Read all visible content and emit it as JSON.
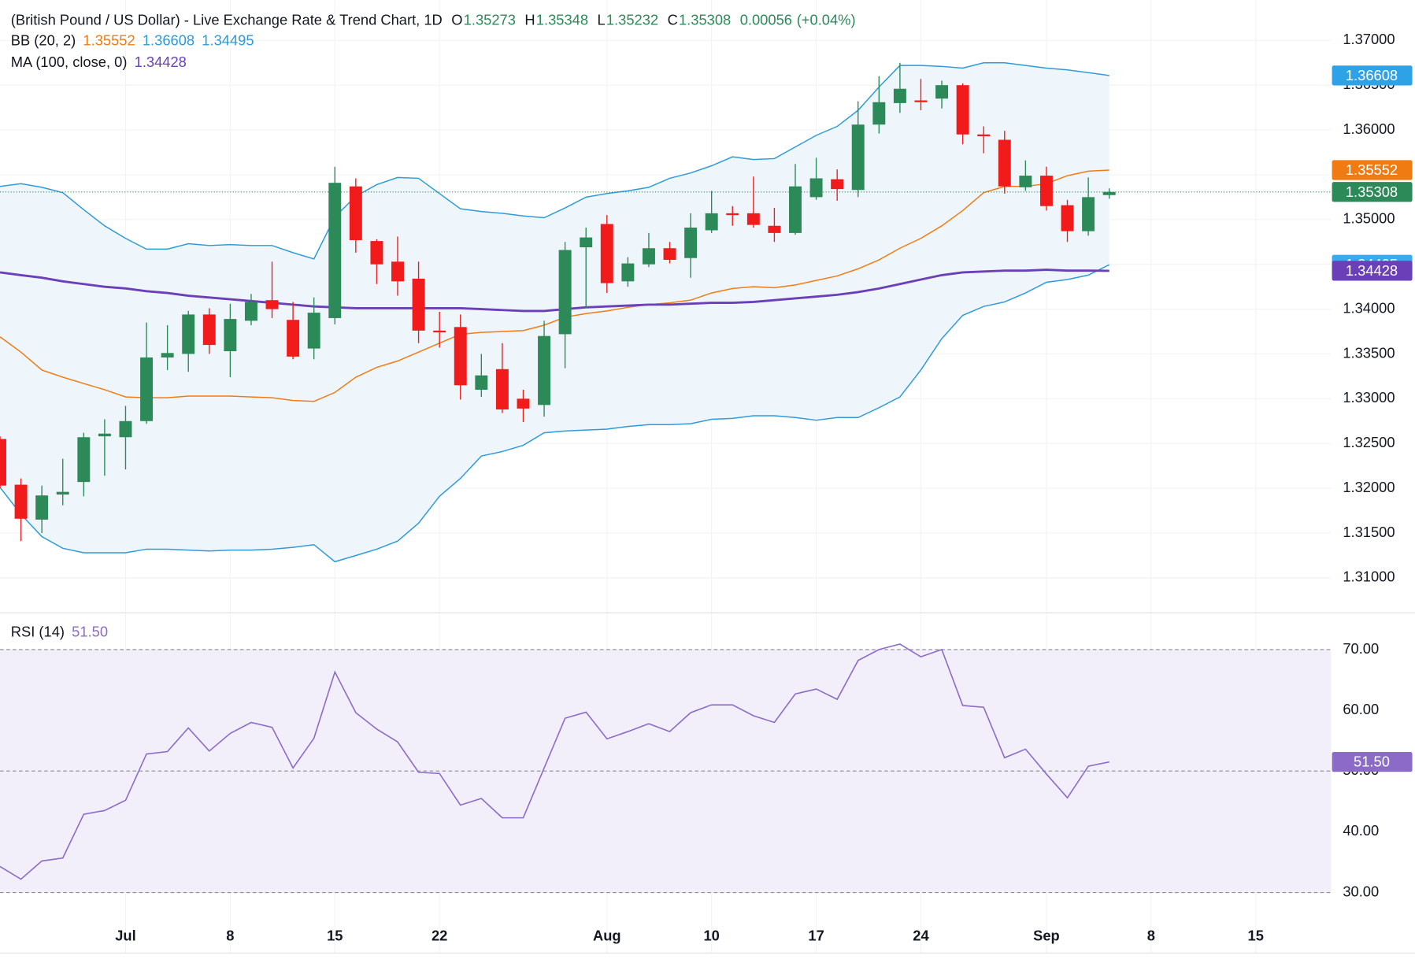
{
  "chart_data": [
    {
      "type": "candlestick",
      "title": "(British Pound / US Dollar) - Live Exchange Rate & Trend Chart, 1D",
      "ohlc_letters": [
        "O",
        "H",
        "L",
        "C"
      ],
      "change": 0.00056,
      "change_label": "(+0.04%)",
      "up_color": "#2b8a57",
      "down_color": "#f21b1b",
      "open": [
        1.3255,
        1.3204,
        1.3165,
        1.3193,
        1.3207,
        1.3258,
        1.3257,
        1.3275,
        1.3346,
        1.335,
        1.3394,
        1.3353,
        1.3387,
        1.341,
        1.3388,
        1.3356,
        1.339,
        1.3537,
        1.3476,
        1.3453,
        1.3434,
        1.3376,
        1.338,
        1.331,
        1.3333,
        1.33,
        1.3293,
        1.3372,
        1.3469,
        1.3495,
        1.3431,
        1.345,
        1.3468,
        1.3457,
        1.3488,
        1.3507,
        1.3507,
        1.3493,
        1.3485,
        1.3525,
        1.3545,
        1.3533,
        1.3606,
        1.363,
        1.3633,
        1.3635,
        1.365,
        1.3595,
        1.3589,
        1.3536,
        1.3549,
        1.3516,
        1.3487,
        1.35273
      ],
      "high": [
        1.3258,
        1.3211,
        1.3203,
        1.3233,
        1.3262,
        1.3277,
        1.3292,
        1.3385,
        1.3382,
        1.3398,
        1.3401,
        1.3406,
        1.3417,
        1.3453,
        1.3408,
        1.3413,
        1.3559,
        1.3546,
        1.3478,
        1.3481,
        1.3453,
        1.3397,
        1.3394,
        1.335,
        1.3362,
        1.331,
        1.3387,
        1.3475,
        1.3491,
        1.3505,
        1.3458,
        1.3485,
        1.3475,
        1.3507,
        1.3532,
        1.3515,
        1.3548,
        1.3513,
        1.3562,
        1.3569,
        1.3556,
        1.3632,
        1.366,
        1.3675,
        1.3657,
        1.3655,
        1.3652,
        1.3604,
        1.3599,
        1.3566,
        1.3559,
        1.3522,
        1.3547,
        1.35348
      ],
      "low": [
        1.32,
        1.3141,
        1.315,
        1.3181,
        1.3191,
        1.3214,
        1.3221,
        1.3272,
        1.3332,
        1.333,
        1.335,
        1.3324,
        1.3382,
        1.339,
        1.3344,
        1.3344,
        1.3383,
        1.3463,
        1.3428,
        1.3415,
        1.3362,
        1.3357,
        1.3299,
        1.3302,
        1.3284,
        1.3274,
        1.328,
        1.3334,
        1.3401,
        1.3418,
        1.3425,
        1.3447,
        1.3451,
        1.3435,
        1.3485,
        1.3493,
        1.3491,
        1.3475,
        1.3483,
        1.3522,
        1.3521,
        1.3525,
        1.3596,
        1.3619,
        1.3622,
        1.3624,
        1.3584,
        1.3574,
        1.3529,
        1.3532,
        1.351,
        1.3475,
        1.3482,
        1.35232
      ],
      "close": [
        1.3203,
        1.3166,
        1.3192,
        1.3196,
        1.3257,
        1.3261,
        1.3275,
        1.3346,
        1.3351,
        1.3394,
        1.336,
        1.3389,
        1.3408,
        1.34,
        1.3347,
        1.3396,
        1.3541,
        1.3477,
        1.345,
        1.3431,
        1.3376,
        1.3374,
        1.3315,
        1.3326,
        1.3288,
        1.3289,
        1.337,
        1.3466,
        1.348,
        1.3429,
        1.3451,
        1.3468,
        1.3455,
        1.3491,
        1.3507,
        1.3505,
        1.3494,
        1.3485,
        1.3537,
        1.3546,
        1.3534,
        1.3606,
        1.3631,
        1.3646,
        1.3631,
        1.365,
        1.3595,
        1.3593,
        1.3537,
        1.3549,
        1.3515,
        1.3487,
        1.3525,
        1.35308
      ],
      "bb_name": "BB (20, 2)",
      "bb_fill": "#eef6fc",
      "bb_middle": {
        "color": "#f07b13",
        "values": [
          1.3369,
          1.3352,
          1.3332,
          1.3324,
          1.3317,
          1.331,
          1.3302,
          1.3301,
          1.3301,
          1.3303,
          1.3303,
          1.3303,
          1.3302,
          1.3301,
          1.3298,
          1.3297,
          1.3307,
          1.3324,
          1.3335,
          1.3342,
          1.3352,
          1.3362,
          1.3372,
          1.3374,
          1.3375,
          1.3376,
          1.3382,
          1.3391,
          1.3395,
          1.3398,
          1.3402,
          1.3405,
          1.3407,
          1.341,
          1.3418,
          1.3423,
          1.3425,
          1.3424,
          1.3427,
          1.3432,
          1.3437,
          1.3445,
          1.3455,
          1.3468,
          1.3479,
          1.3493,
          1.351,
          1.353,
          1.3537,
          1.3537,
          1.354,
          1.3549,
          1.3554,
          1.35552
        ]
      },
      "bb_upper": {
        "color": "#2e9ad8",
        "values": [
          1.3537,
          1.354,
          1.3536,
          1.353,
          1.3511,
          1.3493,
          1.3479,
          1.3467,
          1.3467,
          1.3473,
          1.3471,
          1.3472,
          1.3471,
          1.3471,
          1.3463,
          1.3456,
          1.3503,
          1.3526,
          1.3539,
          1.3547,
          1.3546,
          1.3529,
          1.3512,
          1.3509,
          1.3507,
          1.3504,
          1.3502,
          1.3513,
          1.3525,
          1.3529,
          1.3532,
          1.3536,
          1.3546,
          1.3552,
          1.356,
          1.357,
          1.3567,
          1.3568,
          1.3581,
          1.3594,
          1.3604,
          1.3622,
          1.3648,
          1.3672,
          1.3672,
          1.3671,
          1.3669,
          1.3675,
          1.3675,
          1.3672,
          1.3669,
          1.3667,
          1.3664,
          1.36608
        ]
      },
      "bb_lower": {
        "color": "#2e9ad8",
        "values": [
          1.3201,
          1.3171,
          1.3146,
          1.3133,
          1.3128,
          1.3128,
          1.3128,
          1.3132,
          1.3132,
          1.3131,
          1.313,
          1.3131,
          1.3131,
          1.3132,
          1.3134,
          1.3137,
          1.3118,
          1.3125,
          1.3132,
          1.3141,
          1.3161,
          1.3191,
          1.3211,
          1.3236,
          1.3241,
          1.3248,
          1.3262,
          1.3264,
          1.3265,
          1.3266,
          1.3269,
          1.3271,
          1.3271,
          1.3272,
          1.3277,
          1.3278,
          1.3281,
          1.3281,
          1.3279,
          1.3276,
          1.3279,
          1.3279,
          1.329,
          1.3302,
          1.3332,
          1.3367,
          1.3393,
          1.3403,
          1.3408,
          1.3418,
          1.343,
          1.3433,
          1.3438,
          1.34495
        ]
      },
      "ma": {
        "name": "MA (100, close, 0)",
        "color": "#6b3fb8",
        "values": [
          1.3441,
          1.3438,
          1.3435,
          1.3431,
          1.3428,
          1.3425,
          1.3423,
          1.342,
          1.3418,
          1.3415,
          1.3413,
          1.3411,
          1.3409,
          1.3407,
          1.3405,
          1.3403,
          1.3402,
          1.3401,
          1.3401,
          1.3401,
          1.3401,
          1.3401,
          1.3401,
          1.34,
          1.3399,
          1.3398,
          1.3398,
          1.34,
          1.3402,
          1.3403,
          1.3404,
          1.3405,
          1.3405,
          1.3406,
          1.3407,
          1.3407,
          1.3408,
          1.341,
          1.3412,
          1.3414,
          1.3416,
          1.3419,
          1.3423,
          1.3428,
          1.3433,
          1.3438,
          1.3441,
          1.3442,
          1.3443,
          1.3443,
          1.3444,
          1.3443,
          1.3443,
          1.34428
        ]
      },
      "xlim": [
        0,
        63.6
      ],
      "xticks": [
        {
          "value": 6,
          "label": "Jul"
        },
        {
          "value": 11,
          "label": "8"
        },
        {
          "value": 16,
          "label": "15"
        },
        {
          "value": 21,
          "label": "22"
        },
        {
          "value": 29,
          "label": "Aug"
        },
        {
          "value": 34,
          "label": "10"
        },
        {
          "value": 39,
          "label": "17"
        },
        {
          "value": 44,
          "label": "24"
        },
        {
          "value": 50,
          "label": "Sep"
        },
        {
          "value": 55,
          "label": "8"
        },
        {
          "value": 60,
          "label": "15"
        }
      ],
      "ylim": [
        1.3062,
        1.3745
      ],
      "yticks": [
        {
          "value": 1.31,
          "label": "1.31000"
        },
        {
          "value": 1.315,
          "label": "1.31500"
        },
        {
          "value": 1.32,
          "label": "1.32000"
        },
        {
          "value": 1.325,
          "label": "1.32500"
        },
        {
          "value": 1.33,
          "label": "1.33000"
        },
        {
          "value": 1.335,
          "label": "1.33500"
        },
        {
          "value": 1.34,
          "label": "1.34000"
        },
        {
          "value": 1.345,
          "label": "1.34500"
        },
        {
          "value": 1.35,
          "label": "1.35000"
        },
        {
          "value": 1.355,
          "label": "1.35500"
        },
        {
          "value": 1.36,
          "label": "1.36000"
        },
        {
          "value": 1.365,
          "label": "1.36500"
        },
        {
          "value": 1.37,
          "label": "1.37000"
        }
      ],
      "grid": true
    },
    {
      "type": "line",
      "series": [
        {
          "name": "RSI (14)",
          "color": "#8c6bc8",
          "values": [
            34.3,
            32.2,
            35.2,
            35.7,
            42.9,
            43.5,
            45.2,
            52.8,
            53.2,
            57.1,
            53.3,
            56.2,
            58.0,
            57.2,
            50.5,
            55.4,
            66.3,
            59.6,
            56.9,
            54.8,
            49.8,
            49.6,
            44.4,
            45.5,
            42.3,
            42.3,
            50.5,
            58.7,
            59.7,
            55.3,
            56.5,
            57.8,
            56.5,
            59.6,
            60.9,
            60.9,
            59.1,
            58.0,
            62.7,
            63.5,
            61.8,
            68.2,
            70.0,
            70.9,
            68.8,
            70.0,
            60.8,
            60.5,
            52.2,
            53.6,
            49.5,
            45.6,
            50.8,
            51.5
          ],
          "value_labels": [
            null,
            null,
            null,
            null,
            null,
            null,
            null,
            null,
            null,
            null,
            null,
            null,
            null,
            null,
            null,
            null,
            null,
            null,
            null,
            null,
            null,
            null,
            null,
            null,
            null,
            null,
            null,
            null,
            null,
            null,
            null,
            null,
            null,
            null,
            null,
            null,
            null,
            null,
            null,
            null,
            null,
            null,
            null,
            null,
            null,
            null,
            null,
            null,
            null,
            null,
            null,
            null,
            null,
            "51.50"
          ]
        }
      ],
      "band": [
        30,
        70
      ],
      "band_color": "#f2eefa",
      "levels": [
        70,
        50,
        30
      ],
      "xlim": [
        0,
        63.6
      ],
      "ylim": [
        25.4,
        75.9
      ],
      "yticks": [
        {
          "value": 30,
          "label": "30.00"
        },
        {
          "value": 40,
          "label": "40.00"
        },
        {
          "value": 50,
          "label": "50.00"
        },
        {
          "value": 60,
          "label": "60.00"
        },
        {
          "value": 70,
          "label": "70.00"
        }
      ],
      "grid": true
    }
  ]
}
